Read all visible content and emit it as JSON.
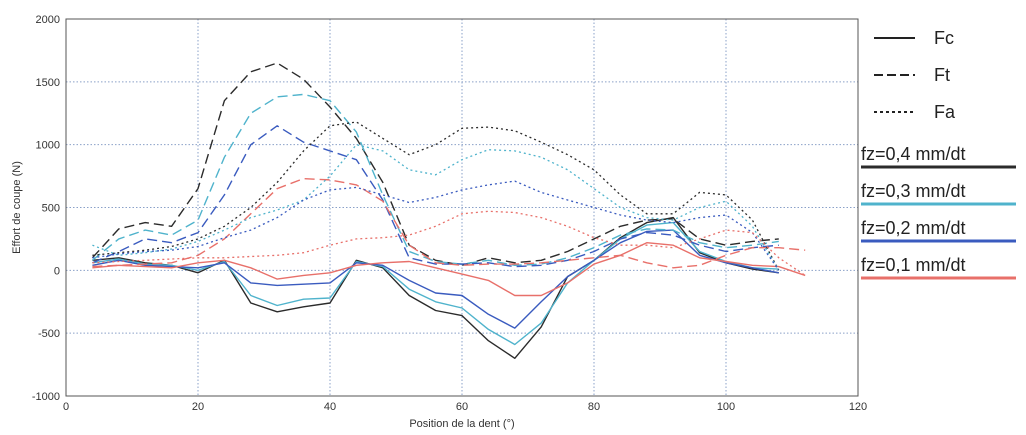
{
  "chart_data": {
    "type": "line",
    "title": "",
    "xlabel": "Position de la dent (°)",
    "ylabel": "Effort de coupe (N)",
    "xlim": [
      0,
      120
    ],
    "ylim": [
      -1000,
      2000
    ],
    "xticks": [
      0,
      20,
      40,
      60,
      80,
      100,
      120
    ],
    "yticks": [
      -1000,
      -500,
      0,
      500,
      1000,
      1500,
      2000
    ],
    "grid": "dotted",
    "legend_position": "right",
    "legend": {
      "styles": [
        {
          "name": "Fc",
          "dash": "solid"
        },
        {
          "name": "Ft",
          "dash": "dashed"
        },
        {
          "name": "Fa",
          "dash": "dotted"
        }
      ],
      "feeds": [
        {
          "name": "fz=0,4 mm/dt",
          "color": "#2b2b2b"
        },
        {
          "name": "fz=0,3 mm/dt",
          "color": "#4fb3cc"
        },
        {
          "name": "fz=0,2 mm/dt",
          "color": "#3a5bbf"
        },
        {
          "name": "fz=0,1 mm/dt",
          "color": "#e8706a"
        }
      ]
    },
    "series": [
      {
        "feed": 0,
        "force": 0,
        "x": [
          4,
          8,
          12,
          16,
          20,
          24,
          28,
          32,
          36,
          40,
          44,
          48,
          52,
          56,
          60,
          64,
          68,
          72,
          76,
          80,
          84,
          88,
          92,
          96,
          100,
          104,
          108
        ],
        "y": [
          80,
          100,
          60,
          40,
          -20,
          80,
          -260,
          -330,
          -290,
          -260,
          80,
          20,
          -200,
          -320,
          -360,
          -560,
          -700,
          -450,
          -50,
          80,
          260,
          380,
          420,
          140,
          60,
          10,
          -20
        ]
      },
      {
        "feed": 1,
        "force": 0,
        "x": [
          4,
          8,
          12,
          16,
          20,
          24,
          28,
          32,
          36,
          40,
          44,
          48,
          52,
          56,
          60,
          64,
          68,
          72,
          76,
          80,
          84,
          88,
          92,
          96,
          100,
          104,
          108
        ],
        "y": [
          60,
          90,
          50,
          40,
          0,
          70,
          -200,
          -280,
          -230,
          -220,
          70,
          30,
          -150,
          -250,
          -300,
          -470,
          -590,
          -420,
          -100,
          80,
          250,
          360,
          380,
          150,
          70,
          20,
          10
        ]
      },
      {
        "feed": 2,
        "force": 0,
        "x": [
          4,
          8,
          12,
          16,
          20,
          24,
          28,
          32,
          36,
          40,
          44,
          48,
          52,
          56,
          60,
          64,
          68,
          72,
          76,
          80,
          84,
          88,
          92,
          96,
          100,
          104,
          108
        ],
        "y": [
          40,
          80,
          40,
          30,
          20,
          60,
          -100,
          -120,
          -110,
          -100,
          60,
          40,
          -80,
          -180,
          -200,
          -350,
          -460,
          -250,
          -50,
          80,
          220,
          310,
          320,
          120,
          60,
          20,
          -20
        ]
      },
      {
        "feed": 3,
        "force": 0,
        "x": [
          4,
          8,
          12,
          16,
          20,
          24,
          28,
          32,
          36,
          40,
          44,
          48,
          52,
          56,
          60,
          64,
          68,
          72,
          76,
          80,
          84,
          88,
          92,
          96,
          100,
          104,
          108,
          112
        ],
        "y": [
          20,
          40,
          30,
          20,
          60,
          80,
          20,
          -70,
          -40,
          -20,
          40,
          60,
          70,
          20,
          -30,
          -80,
          -200,
          -200,
          -100,
          50,
          120,
          220,
          200,
          100,
          70,
          40,
          30,
          -40
        ]
      },
      {
        "feed": 0,
        "force": 1,
        "x": [
          4,
          8,
          12,
          16,
          20,
          24,
          28,
          32,
          36,
          40,
          44,
          48,
          52,
          56,
          60,
          64,
          68,
          72,
          76,
          80,
          84,
          88,
          92,
          96,
          100,
          104,
          108
        ],
        "y": [
          100,
          330,
          380,
          350,
          650,
          1350,
          1580,
          1650,
          1520,
          1300,
          1050,
          700,
          200,
          80,
          40,
          100,
          60,
          80,
          150,
          250,
          350,
          400,
          410,
          250,
          200,
          230,
          250
        ]
      },
      {
        "feed": 1,
        "force": 1,
        "x": [
          4,
          8,
          12,
          16,
          20,
          24,
          28,
          32,
          36,
          40,
          44,
          48,
          52,
          56,
          60,
          64,
          68,
          72,
          76,
          80,
          84,
          88,
          92,
          96,
          100,
          104,
          108
        ],
        "y": [
          80,
          250,
          320,
          280,
          400,
          900,
          1250,
          1380,
          1400,
          1350,
          1100,
          600,
          150,
          70,
          50,
          80,
          40,
          50,
          100,
          180,
          280,
          330,
          320,
          220,
          180,
          200,
          230
        ]
      },
      {
        "feed": 2,
        "force": 1,
        "x": [
          4,
          8,
          12,
          16,
          20,
          24,
          28,
          32,
          36,
          40,
          44,
          48,
          52,
          56,
          60,
          64,
          68,
          72,
          76,
          80,
          84,
          88,
          92,
          96,
          100,
          104,
          108
        ],
        "y": [
          60,
          150,
          250,
          220,
          300,
          600,
          1000,
          1150,
          1020,
          950,
          880,
          560,
          100,
          50,
          50,
          60,
          30,
          40,
          80,
          150,
          250,
          300,
          280,
          200,
          150,
          180,
          200
        ]
      },
      {
        "feed": 3,
        "force": 1,
        "x": [
          4,
          8,
          12,
          16,
          20,
          24,
          28,
          32,
          36,
          40,
          44,
          48,
          52,
          56,
          60,
          64,
          68,
          72,
          76,
          80,
          84,
          88,
          92,
          96,
          100,
          104,
          108,
          112
        ],
        "y": [
          30,
          40,
          50,
          60,
          120,
          250,
          450,
          650,
          730,
          720,
          680,
          550,
          200,
          60,
          40,
          50,
          50,
          60,
          80,
          100,
          120,
          60,
          20,
          40,
          120,
          180,
          180,
          160
        ]
      },
      {
        "feed": 0,
        "force": 2,
        "x": [
          4,
          8,
          12,
          16,
          20,
          24,
          28,
          32,
          36,
          40,
          44,
          48,
          52,
          56,
          60,
          64,
          68,
          72,
          76,
          80,
          84,
          88,
          92,
          96,
          100,
          104,
          108
        ],
        "y": [
          120,
          140,
          160,
          190,
          250,
          350,
          500,
          700,
          950,
          1150,
          1180,
          1050,
          920,
          1000,
          1130,
          1140,
          1110,
          1020,
          920,
          800,
          600,
          450,
          450,
          620,
          600,
          400,
          0
        ]
      },
      {
        "feed": 1,
        "force": 2,
        "x": [
          4,
          8,
          12,
          16,
          20,
          24,
          28,
          32,
          36,
          40,
          44,
          48,
          52,
          56,
          60,
          64,
          68,
          72,
          76,
          80,
          84,
          88,
          92,
          96,
          100,
          104,
          108
        ],
        "y": [
          200,
          120,
          140,
          170,
          230,
          320,
          420,
          480,
          560,
          750,
          1000,
          950,
          800,
          760,
          880,
          960,
          950,
          900,
          800,
          650,
          500,
          420,
          400,
          500,
          550,
          350,
          0
        ]
      },
      {
        "feed": 2,
        "force": 2,
        "x": [
          4,
          8,
          12,
          16,
          20,
          24,
          28,
          32,
          36,
          40,
          44,
          48,
          52,
          56,
          60,
          64,
          68,
          72,
          76,
          80,
          84,
          88,
          92,
          96,
          100,
          104,
          108
        ],
        "y": [
          100,
          130,
          150,
          160,
          190,
          260,
          320,
          420,
          560,
          640,
          660,
          600,
          540,
          580,
          640,
          680,
          710,
          620,
          560,
          500,
          440,
          400,
          380,
          420,
          440,
          300,
          0
        ]
      },
      {
        "feed": 3,
        "force": 2,
        "x": [
          4,
          8,
          12,
          16,
          20,
          24,
          28,
          32,
          36,
          40,
          44,
          48,
          52,
          56,
          60,
          64,
          68,
          72,
          76,
          80,
          84,
          88,
          92,
          96,
          100,
          104,
          108,
          112
        ],
        "y": [
          60,
          70,
          80,
          90,
          100,
          100,
          110,
          120,
          140,
          200,
          250,
          260,
          280,
          350,
          450,
          470,
          460,
          420,
          350,
          260,
          200,
          200,
          180,
          250,
          320,
          300,
          100,
          -40
        ]
      }
    ]
  }
}
